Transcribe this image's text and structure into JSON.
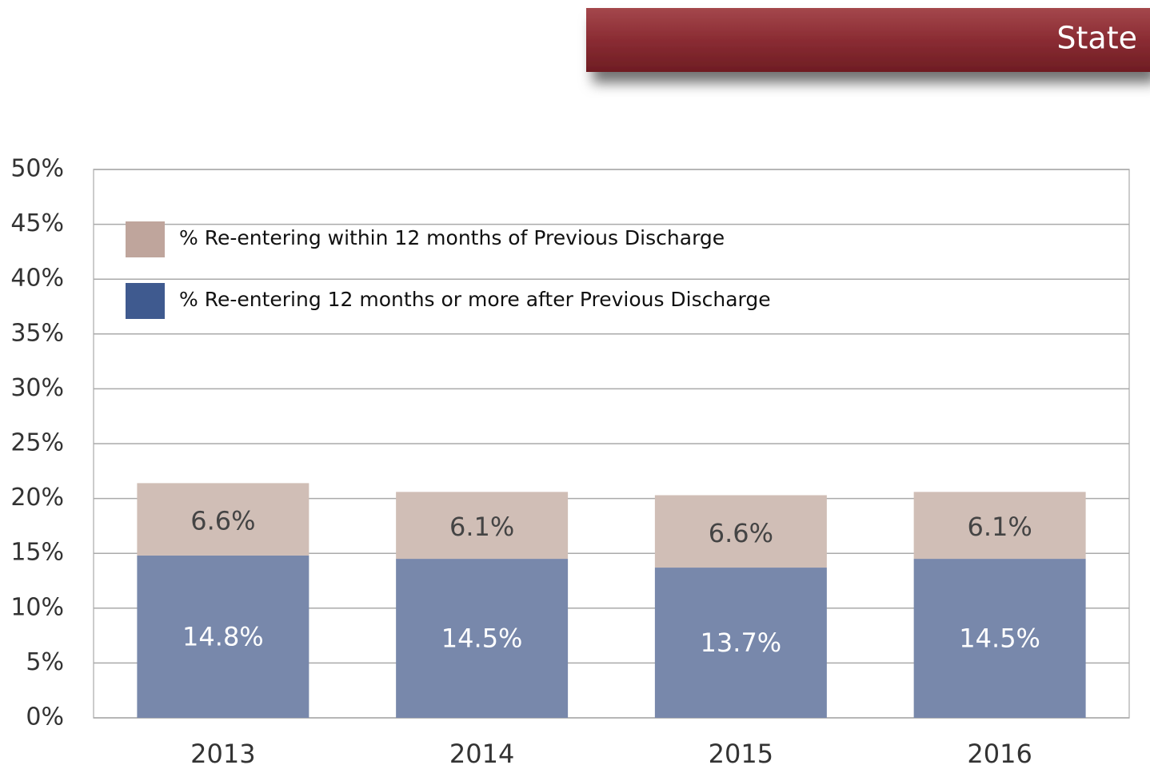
{
  "chart_data": {
    "type": "stacked_bar",
    "title": "State",
    "categories": [
      "2013",
      "2014",
      "2015",
      "2016"
    ],
    "series": [
      {
        "name": "% Re-entering 12 months or more after Previous Discharge",
        "color": "#7888ab",
        "legend_color": "#3f5a8f",
        "values": [
          14.8,
          14.5,
          13.7,
          14.5
        ],
        "value_labels": [
          "14.8%",
          "14.5%",
          "13.7%",
          "14.5%"
        ]
      },
      {
        "name": "% Re-entering within 12 months of Previous Discharge",
        "color": "#d0beb6",
        "legend_color": "#bfa59c",
        "values": [
          6.6,
          6.1,
          6.6,
          6.1
        ],
        "value_labels": [
          "6.6%",
          "6.1%",
          "6.6%",
          "6.1%"
        ]
      }
    ],
    "ylim": [
      0,
      50
    ],
    "yticks": [
      {
        "value": 0,
        "label": "0%"
      },
      {
        "value": 5,
        "label": "5%"
      },
      {
        "value": 10,
        "label": "10%"
      },
      {
        "value": 15,
        "label": "15%"
      },
      {
        "value": 20,
        "label": "20%"
      },
      {
        "value": 25,
        "label": "25%"
      },
      {
        "value": 30,
        "label": "30%"
      },
      {
        "value": 35,
        "label": "35%"
      },
      {
        "value": 40,
        "label": "40%"
      },
      {
        "value": 45,
        "label": "45%"
      },
      {
        "value": 50,
        "label": "50%"
      }
    ],
    "grid": true
  }
}
